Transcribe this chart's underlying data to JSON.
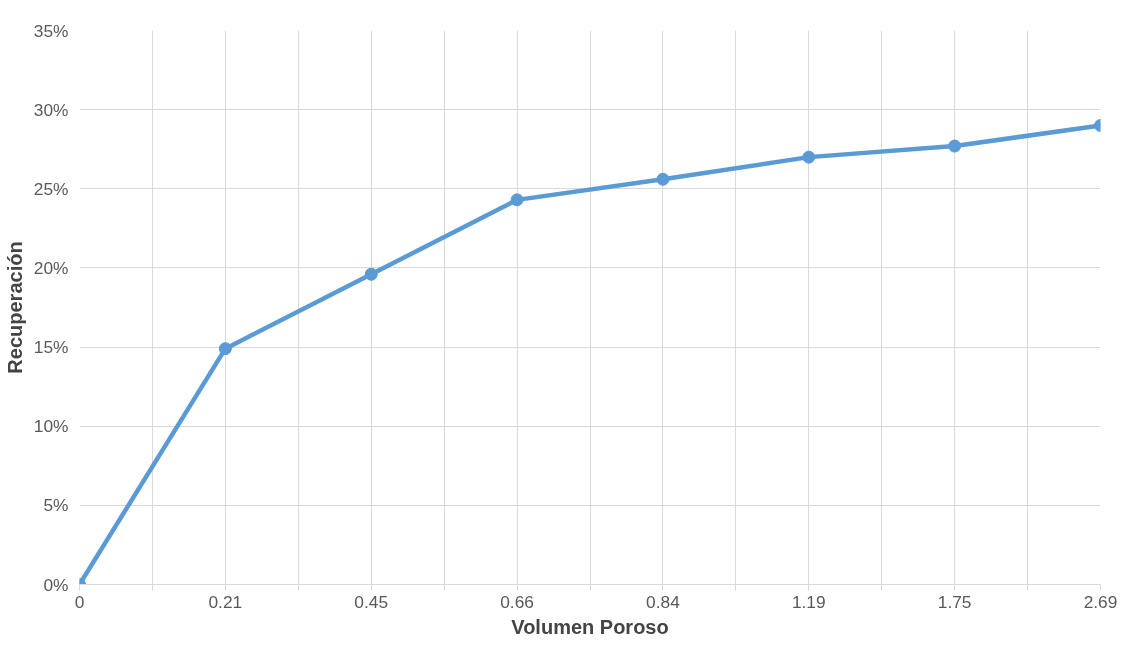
{
  "chart_data": {
    "type": "line",
    "xlabel": "Volumen Poroso",
    "ylabel": "Recuperación",
    "categories": [
      "0",
      "0.21",
      "0.45",
      "0.66",
      "0.84",
      "1.19",
      "1.75",
      "2.69"
    ],
    "series": [
      {
        "color": "#5b9bd5",
        "values": [
          0,
          14.9,
          19.6,
          24.3,
          25.6,
          27.0,
          27.7,
          29.0
        ]
      }
    ],
    "ylim": [
      0,
      35
    ],
    "yticks": [
      {
        "value": 0,
        "label": "0%"
      },
      {
        "value": 5,
        "label": "5%"
      },
      {
        "value": 10,
        "label": "10%"
      },
      {
        "value": 15,
        "label": "15%"
      },
      {
        "value": 20,
        "label": "20%"
      },
      {
        "value": 25,
        "label": "25%"
      },
      {
        "value": 30,
        "label": "30%"
      },
      {
        "value": 35,
        "label": "35%"
      }
    ],
    "grid": true,
    "marker": "circle",
    "line_style": "solid"
  }
}
